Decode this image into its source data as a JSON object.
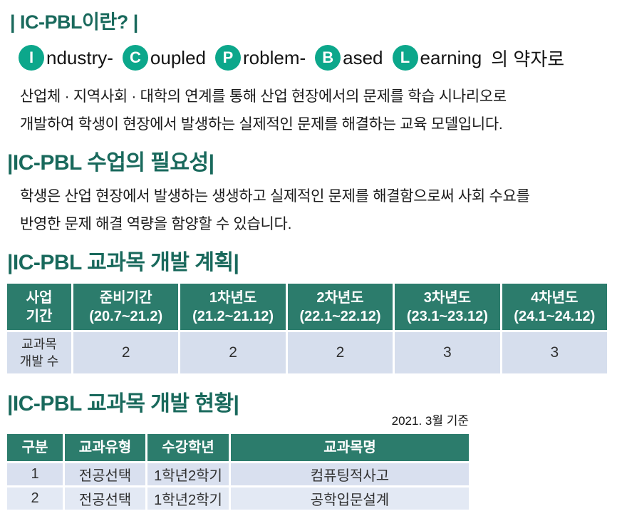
{
  "colors": {
    "heading_teal": "#19695c",
    "badge_teal": "#0ca78b",
    "table_header_teal": "#2c7c6c",
    "row_blue": "#d6deed",
    "row_blue_alt": "#e3e9f4"
  },
  "section1": {
    "title": "| IC-PBL이란? |",
    "acronym": {
      "parts": [
        {
          "letter": "I",
          "rest": "ndustry-"
        },
        {
          "letter": "C",
          "rest": "oupled"
        },
        {
          "letter": "P",
          "rest": "roblem-"
        },
        {
          "letter": "B",
          "rest": "ased"
        },
        {
          "letter": "L",
          "rest": "earning"
        }
      ],
      "suffix": "의 약자로"
    },
    "body_lines": [
      "산업체 · 지역사회 · 대학의 연계를 통해 산업 현장에서의 문제를 학습 시나리오로",
      "개발하여 학생이 현장에서 발생하는 실제적인 문제를 해결하는 교육 모델입니다."
    ]
  },
  "section2": {
    "title": "|IC-PBL 수업의 필요성|",
    "body_lines": [
      "학생은 산업 현장에서 발생하는 생생하고 실제적인 문제를 해결함으로써 사회 수요를",
      "반영한 문제 해결 역량을 함양할 수 있습니다."
    ]
  },
  "section3": {
    "title": "|IC-PBL 교과목 개발 계획|",
    "table": {
      "columns": [
        {
          "title": "사업",
          "sub": "기간"
        },
        {
          "title": "준비기간",
          "sub": "(20.7~21.2)"
        },
        {
          "title": "1차년도",
          "sub": "(21.2~21.12)"
        },
        {
          "title": "2차년도",
          "sub": "(22.1~22.12)"
        },
        {
          "title": "3차년도",
          "sub": "(23.1~23.12)"
        },
        {
          "title": "4차년도",
          "sub": "(24.1~24.12)"
        }
      ],
      "row_label": {
        "line1": "교과목",
        "line2": "개발 수"
      },
      "values": [
        "2",
        "2",
        "2",
        "3",
        "3"
      ]
    }
  },
  "section4": {
    "title": "|IC-PBL 교과목 개발 현황|",
    "as_of": "2021. 3월 기준",
    "table": {
      "headers": [
        "구분",
        "교과유형",
        "수강학년",
        "교과목명"
      ],
      "rows": [
        [
          "1",
          "전공선택",
          "1학년2학기",
          "컴퓨팅적사고"
        ],
        [
          "2",
          "전공선택",
          "1학년2학기",
          "공학입문설계"
        ]
      ]
    }
  }
}
